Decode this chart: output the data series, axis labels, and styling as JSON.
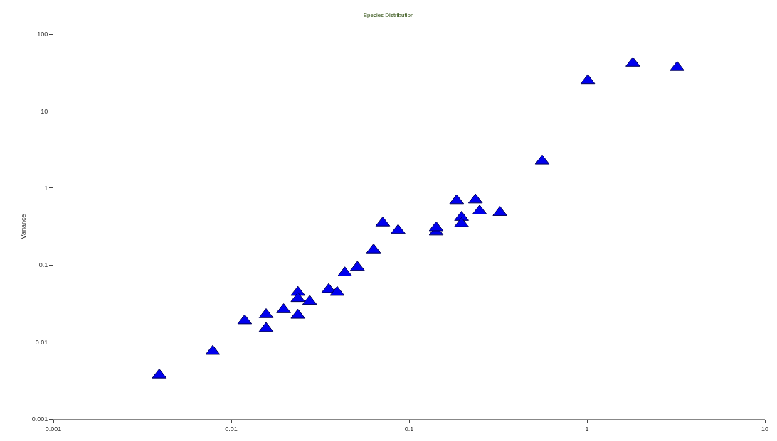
{
  "chart_data": {
    "type": "scatter",
    "title": "Species Distribution",
    "ylabel": "Variance",
    "log": "xy",
    "marker": "triangle",
    "xlim": [
      0.001,
      10
    ],
    "ylim": [
      0.001,
      100
    ],
    "xticks": [
      0.001,
      0.01,
      0.1,
      1,
      10
    ],
    "yticks": [
      0.001,
      0.01,
      0.1,
      1,
      10,
      100
    ],
    "series": [
      {
        "color": "#0000ee",
        "x": [
          0.00394,
          0.00787,
          0.0119,
          0.0157,
          0.0157,
          0.0197,
          0.0237,
          0.0237,
          0.0237,
          0.0276,
          0.0353,
          0.0394,
          0.0435,
          0.0512,
          0.0631,
          0.0711,
          0.0867,
          0.142,
          0.142,
          0.185,
          0.197,
          0.197,
          0.236,
          0.249,
          0.324,
          0.56,
          1.01,
          1.81,
          3.21
        ],
        "values": [
          0.00374,
          0.00757,
          0.0189,
          0.0227,
          0.015,
          0.0263,
          0.0442,
          0.0367,
          0.0223,
          0.0337,
          0.0481,
          0.0442,
          0.0791,
          0.0933,
          0.157,
          0.352,
          0.281,
          0.269,
          0.305,
          0.686,
          0.416,
          0.345,
          0.7,
          0.502,
          0.482,
          2.24,
          24.9,
          41.8,
          36.9
        ]
      }
    ]
  }
}
